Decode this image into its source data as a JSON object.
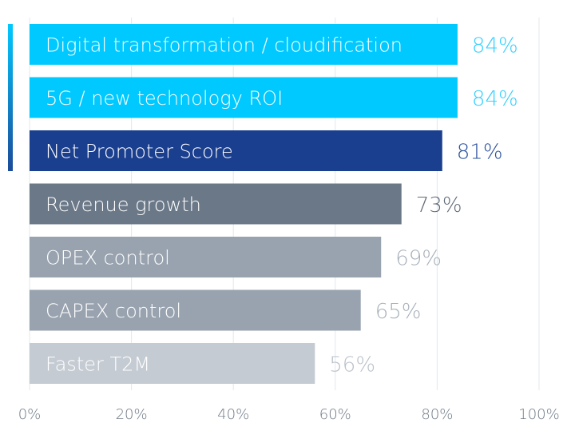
{
  "chart_data": {
    "type": "bar",
    "orientation": "horizontal",
    "categories": [
      "Digital transformation / cloudification",
      "5G / new technology ROI",
      "Net Promoter Score",
      "Revenue growth",
      "OPEX control",
      "CAPEX control",
      "Faster T2M"
    ],
    "values": [
      84,
      84,
      81,
      73,
      69,
      65,
      56
    ],
    "value_labels": [
      "84%",
      "84%",
      "81%",
      "73%",
      "69%",
      "65%",
      "56%"
    ],
    "bar_colors": [
      "#00c9ff",
      "#00c9ff",
      "#1b3f8f",
      "#6b7888",
      "#98a3af",
      "#98a3af",
      "#c4cbd3"
    ],
    "value_label_colors": [
      "#33cfff",
      "#33cfff",
      "#2a4f9e",
      "#5f6b78",
      "#a7b0ba",
      "#a7b0ba",
      "#b9c1c9"
    ],
    "accent_bracket_color": "#1c5aa7",
    "xlim": [
      0,
      100
    ],
    "x_ticks": [
      0,
      20,
      40,
      60,
      80,
      100
    ],
    "x_tick_labels": [
      "0%",
      "20%",
      "40%",
      "60%",
      "80%",
      "100%"
    ],
    "grid": "vertical",
    "legend": "none"
  }
}
